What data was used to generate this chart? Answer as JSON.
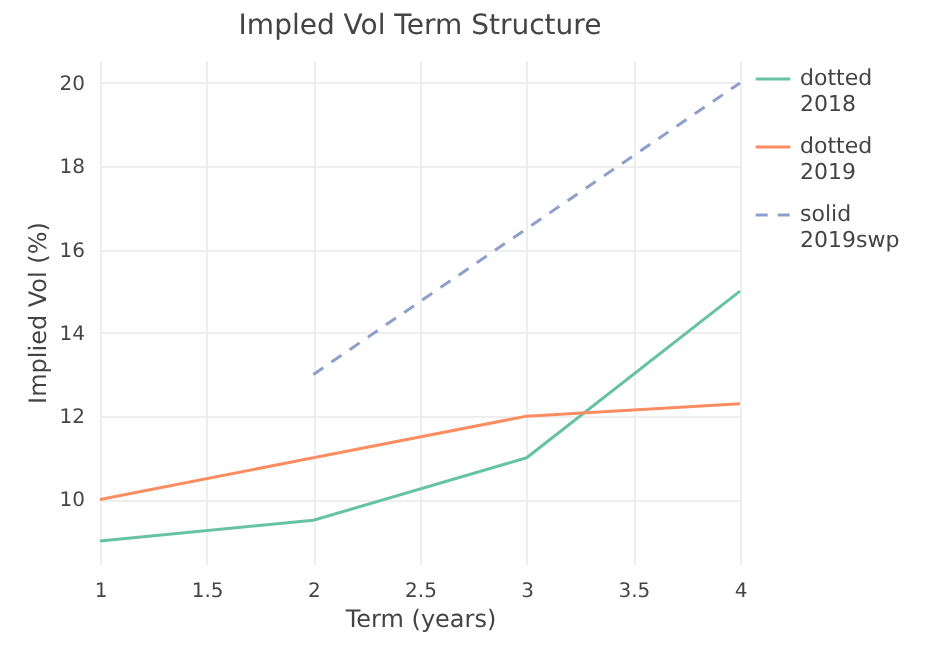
{
  "chart_data": {
    "type": "line",
    "title": "Impled Vol Term Structure",
    "xlabel": "Term (years)",
    "ylabel": "Implied Vol (%)",
    "x": [
      1,
      2,
      3,
      4
    ],
    "series": [
      {
        "name": "dotted 2018",
        "color": "#66c2a5",
        "values": [
          9,
          9.5,
          11,
          15
        ],
        "line_style": "solid"
      },
      {
        "name": "dotted 2019",
        "color": "#fc8d62",
        "values": [
          10,
          11,
          12,
          12.3
        ],
        "line_style": "solid"
      },
      {
        "name": "solid 2019swp",
        "color": "#8da0cb",
        "x": [
          2,
          3,
          4
        ],
        "values": [
          13,
          16.5,
          20
        ],
        "line_style": "dashed"
      }
    ],
    "xlim": [
      1,
      4
    ],
    "xticks": [
      1,
      1.5,
      2,
      2.5,
      3,
      3.5,
      4
    ],
    "ylim": [
      8.45,
      20.55
    ],
    "yticks": [
      10,
      12,
      14,
      16,
      18,
      20
    ],
    "grid": true,
    "legend": "top right",
    "marker": "none"
  }
}
